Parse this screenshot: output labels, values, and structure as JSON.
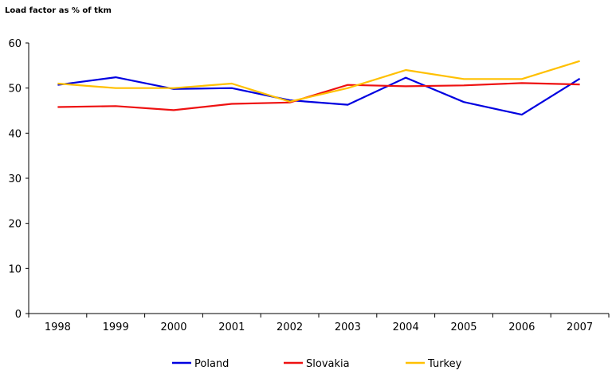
{
  "chart_data": {
    "type": "line",
    "title": "",
    "ylabel": "Load factor as % of tkm",
    "xlabel": "",
    "categories": [
      "1998",
      "1999",
      "2000",
      "2001",
      "2002",
      "2003",
      "2004",
      "2005",
      "2006",
      "2007"
    ],
    "ylim": [
      0,
      60
    ],
    "yticks": [
      0,
      10,
      20,
      30,
      40,
      50,
      60
    ],
    "grid": false,
    "legend_position": "bottom",
    "series": [
      {
        "name": "Poland",
        "color": "#0000e0",
        "values": [
          50.7,
          52.4,
          49.8,
          50.0,
          47.3,
          46.3,
          52.3,
          46.9,
          44.1,
          52.1
        ]
      },
      {
        "name": "Slovakia",
        "color": "#ee1111",
        "values": [
          45.8,
          46.0,
          45.1,
          46.5,
          46.8,
          50.7,
          50.4,
          50.6,
          51.1,
          50.8
        ]
      },
      {
        "name": "Turkey",
        "color": "#ffc000",
        "values": [
          51.0,
          50.0,
          50.0,
          51.0,
          47.0,
          50.0,
          54.0,
          52.0,
          52.0,
          56.0
        ]
      }
    ]
  }
}
